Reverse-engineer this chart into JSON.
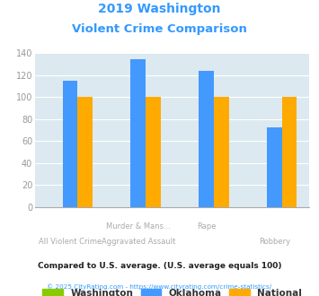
{
  "title_line1": "2019 Washington",
  "title_line2": "Violent Crime Comparison",
  "title_color": "#3399ff",
  "cat_line1": [
    "All Violent Crime",
    "Murder & Mans...",
    "Rape",
    "Robbery"
  ],
  "cat_line2": [
    "",
    "Aggravated Assault",
    "",
    ""
  ],
  "washington_values": [
    0,
    0,
    0,
    0
  ],
  "oklahoma_values": [
    115,
    135,
    124,
    73
  ],
  "national_values": [
    100,
    100,
    100,
    100
  ],
  "washington_color": "#88cc00",
  "oklahoma_color": "#4499ff",
  "national_color": "#ffaa00",
  "bg_color": "#dce9f0",
  "ylim": [
    0,
    140
  ],
  "yticks": [
    0,
    20,
    40,
    60,
    80,
    100,
    120,
    140
  ],
  "legend_labels": [
    "Washington",
    "Oklahoma",
    "National"
  ],
  "footnote1": "Compared to U.S. average. (U.S. average equals 100)",
  "footnote2": "© 2025 CityRating.com - https://www.cityrating.com/crime-statistics/",
  "footnote1_color": "#222222",
  "footnote2_color": "#3399ff"
}
